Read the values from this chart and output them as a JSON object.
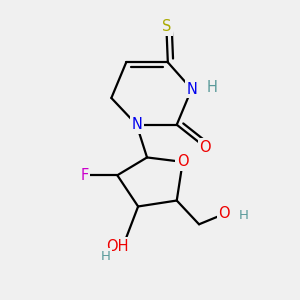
{
  "background_color": "#f0f0f0",
  "atom_colors": {
    "C": "#000000",
    "N": "#0000ee",
    "O": "#ee0000",
    "S": "#aaaa00",
    "F": "#cc00cc",
    "H_color": "#5a9a9a"
  },
  "bond_color": "#000000",
  "bond_width": 1.6,
  "font_size": 10.5,
  "fig_width": 3.0,
  "fig_height": 3.0,
  "dpi": 100,
  "xlim": [
    0,
    10
  ],
  "ylim": [
    0,
    10
  ]
}
